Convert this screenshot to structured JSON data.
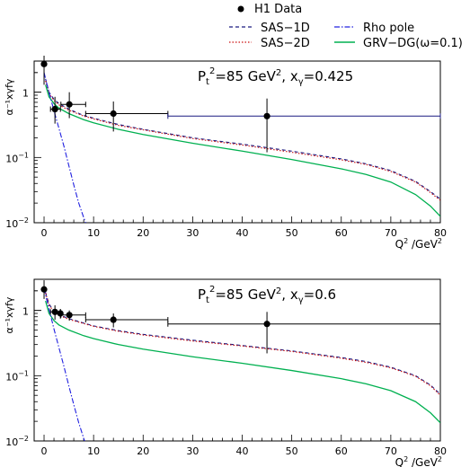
{
  "legend": {
    "items": [
      {
        "label": "H1 Data",
        "style": "marker",
        "color": "#000000"
      },
      {
        "label": "SAS−1D",
        "style": "dashed",
        "color": "#1a1a80"
      },
      {
        "label": "Rho pole",
        "style": "dashdot",
        "color": "#2020e0"
      },
      {
        "label": "SAS−2D",
        "style": "dotted",
        "color": "#cc1010"
      },
      {
        "label": "GRV−DG(ω=0.1)",
        "style": "solid",
        "color": "#00b050"
      }
    ]
  },
  "chart_data": [
    {
      "type": "line",
      "annotation": "Pt²=85 GeV², xγ=0.425",
      "annotation_parts": {
        "pt_label": "P",
        "pt_sub": "t",
        "pt_sup": "2",
        "pt_value": "=85 GeV",
        "pt_unit_sup": "2",
        "sep": ", ",
        "x_label": "x",
        "x_sub": "γ",
        "x_value": "=0.425"
      },
      "ylabel": "α⁻¹xγfγ",
      "xlabel": "Q² /GeV²",
      "xlabel_parts": {
        "q": "Q",
        "q_sup": "2",
        "unit": " /GeV",
        "unit_sup": "2"
      },
      "yscale": "log",
      "xlim": [
        -2,
        80
      ],
      "ylim": [
        0.01,
        3
      ],
      "xticks": [
        0,
        10,
        20,
        30,
        40,
        50,
        60,
        70,
        80
      ],
      "yticks": [
        {
          "value": 0.01,
          "base": "10",
          "exp": "−2"
        },
        {
          "value": 0.1,
          "base": "10",
          "exp": "−1"
        },
        {
          "value": 1,
          "base": "1",
          "exp": ""
        }
      ],
      "data_points": [
        {
          "x": 0,
          "y": 2.7,
          "xerr": [
            0,
            0
          ],
          "yerr": [
            1.3,
            4.0
          ],
          "line_color": "#000000"
        },
        {
          "x": 2.2,
          "y": 0.55,
          "xerr": [
            1.3,
            3.3
          ],
          "yerr": [
            0.33,
            0.85
          ],
          "line_color": "#000000"
        },
        {
          "x": 5.1,
          "y": 0.65,
          "xerr": [
            3.4,
            8.4
          ],
          "yerr": [
            0.4,
            1.0
          ],
          "line_color": "#000000"
        },
        {
          "x": 14,
          "y": 0.47,
          "xerr": [
            8.4,
            25
          ],
          "yerr": [
            0.25,
            0.72
          ],
          "line_color": "#000000"
        },
        {
          "x": 45,
          "y": 0.43,
          "xerr": [
            25,
            80
          ],
          "yerr": [
            0.12,
            0.8
          ],
          "line_color": "#1a1a80"
        }
      ],
      "series": [
        {
          "name": "SAS−1D",
          "x": [
            0.3,
            1,
            2,
            3,
            5,
            8,
            10,
            15,
            20,
            30,
            40,
            50,
            60,
            65,
            70,
            75,
            78,
            80
          ],
          "values": [
            1.6,
            1.0,
            0.78,
            0.67,
            0.55,
            0.44,
            0.4,
            0.32,
            0.27,
            0.2,
            0.16,
            0.125,
            0.095,
            0.08,
            0.063,
            0.043,
            0.03,
            0.023
          ]
        },
        {
          "name": "SAS−2D",
          "x": [
            0.3,
            1,
            2,
            3,
            5,
            8,
            10,
            15,
            20,
            30,
            40,
            50,
            60,
            65,
            70,
            75,
            78,
            80
          ],
          "values": [
            1.5,
            0.95,
            0.75,
            0.64,
            0.53,
            0.43,
            0.39,
            0.31,
            0.265,
            0.195,
            0.155,
            0.12,
            0.092,
            0.078,
            0.061,
            0.042,
            0.029,
            0.022
          ]
        },
        {
          "name": "GRV−DG(ω=0.1)",
          "x": [
            0.3,
            1,
            2,
            3,
            5,
            8,
            10,
            15,
            20,
            30,
            40,
            50,
            60,
            65,
            70,
            75,
            78,
            80
          ],
          "values": [
            1.3,
            0.85,
            0.67,
            0.57,
            0.47,
            0.38,
            0.34,
            0.27,
            0.225,
            0.165,
            0.125,
            0.093,
            0.067,
            0.055,
            0.042,
            0.027,
            0.018,
            0.0125
          ]
        },
        {
          "name": "Rho pole",
          "x": [
            0,
            0.5,
            1,
            1.5,
            2,
            3,
            4,
            5,
            6,
            7,
            8,
            8.5
          ],
          "values": [
            2.0,
            1.4,
            1.0,
            0.72,
            0.52,
            0.28,
            0.15,
            0.075,
            0.038,
            0.02,
            0.012,
            0.0095
          ]
        }
      ]
    },
    {
      "type": "line",
      "annotation": "Pt²=85 GeV², xγ=0.6",
      "annotation_parts": {
        "pt_label": "P",
        "pt_sub": "t",
        "pt_sup": "2",
        "pt_value": "=85 GeV",
        "pt_unit_sup": "2",
        "sep": ", ",
        "x_label": "x",
        "x_sub": "γ",
        "x_value": "=0.6"
      },
      "ylabel": "α⁻¹xγfγ",
      "xlabel": "Q² /GeV²",
      "xlabel_parts": {
        "q": "Q",
        "q_sup": "2",
        "unit": " /GeV",
        "unit_sup": "2"
      },
      "yscale": "log",
      "xlim": [
        -2,
        80
      ],
      "ylim": [
        0.01,
        3
      ],
      "xticks": [
        0,
        10,
        20,
        30,
        40,
        50,
        60,
        70,
        80
      ],
      "yticks": [
        {
          "value": 0.01,
          "base": "10",
          "exp": "−2"
        },
        {
          "value": 0.1,
          "base": "10",
          "exp": "−1"
        },
        {
          "value": 1,
          "base": "1",
          "exp": ""
        }
      ],
      "data_points": [
        {
          "x": 0,
          "y": 2.1,
          "xerr": [
            0,
            0
          ],
          "yerr": [
            1.5,
            2.9
          ],
          "line_color": "#000000"
        },
        {
          "x": 2.2,
          "y": 0.95,
          "xerr": [
            1.3,
            3.3
          ],
          "yerr": [
            0.72,
            1.2
          ],
          "line_color": "#000000"
        },
        {
          "x": 3.3,
          "y": 0.9,
          "xerr": [
            3.3,
            3.3
          ],
          "yerr": [
            0.75,
            1.05
          ],
          "line_color": "#000000"
        },
        {
          "x": 5.1,
          "y": 0.85,
          "xerr": [
            3.4,
            8.4
          ],
          "yerr": [
            0.7,
            1.0
          ],
          "line_color": "#000000"
        },
        {
          "x": 14,
          "y": 0.72,
          "xerr": [
            8.4,
            25
          ],
          "yerr": [
            0.55,
            0.9
          ],
          "line_color": "#000000"
        },
        {
          "x": 45,
          "y": 0.62,
          "xerr": [
            25,
            80
          ],
          "yerr": [
            0.22,
            0.95
          ],
          "line_color": "#000000"
        }
      ],
      "series": [
        {
          "name": "SAS−1D",
          "x": [
            0.3,
            1,
            2,
            3,
            5,
            8,
            10,
            15,
            20,
            30,
            40,
            50,
            60,
            65,
            70,
            75,
            78,
            80
          ],
          "values": [
            1.9,
            1.25,
            0.98,
            0.86,
            0.75,
            0.64,
            0.58,
            0.49,
            0.43,
            0.35,
            0.29,
            0.24,
            0.19,
            0.165,
            0.135,
            0.1,
            0.072,
            0.052
          ]
        },
        {
          "name": "SAS−2D",
          "x": [
            0.3,
            1,
            2,
            3,
            5,
            8,
            10,
            15,
            20,
            30,
            40,
            50,
            60,
            65,
            70,
            75,
            78,
            80
          ],
          "values": [
            1.85,
            1.2,
            0.96,
            0.84,
            0.73,
            0.63,
            0.57,
            0.48,
            0.42,
            0.34,
            0.285,
            0.235,
            0.185,
            0.16,
            0.132,
            0.098,
            0.07,
            0.05
          ]
        },
        {
          "name": "GRV−DG(ω=0.1)",
          "x": [
            0.3,
            1,
            2,
            3,
            5,
            8,
            10,
            15,
            20,
            30,
            40,
            50,
            60,
            65,
            70,
            75,
            78,
            80
          ],
          "values": [
            1.4,
            0.9,
            0.7,
            0.6,
            0.5,
            0.41,
            0.37,
            0.3,
            0.255,
            0.195,
            0.155,
            0.12,
            0.09,
            0.075,
            0.059,
            0.04,
            0.027,
            0.019
          ]
        },
        {
          "name": "Rho pole",
          "x": [
            0,
            0.5,
            1,
            1.5,
            2,
            3,
            4,
            5,
            6,
            7,
            8,
            8.5
          ],
          "values": [
            2.2,
            1.5,
            1.05,
            0.74,
            0.52,
            0.27,
            0.14,
            0.07,
            0.036,
            0.019,
            0.011,
            0.0085
          ]
        }
      ]
    }
  ]
}
